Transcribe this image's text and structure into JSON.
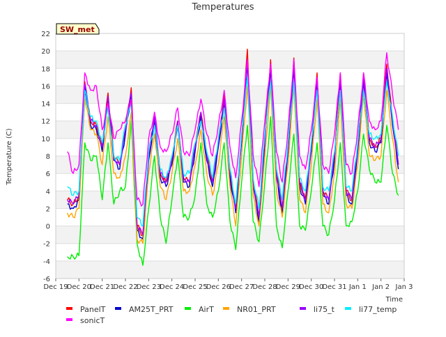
{
  "chart_data": {
    "type": "line",
    "title": "Temperatures",
    "xlabel": "Time",
    "ylabel": "Temperature (C)",
    "annotation": "SW_met",
    "ylim": [
      -6,
      22
    ],
    "yticks": [
      -6,
      -4,
      -2,
      0,
      2,
      4,
      6,
      8,
      10,
      12,
      14,
      16,
      18,
      20,
      22
    ],
    "xlim": [
      "2021-12-19",
      "2022-01-03"
    ],
    "xticks": [
      "Dec 19",
      "Dec 20",
      "Dec 21",
      "Dec 22",
      "Dec 23",
      "Dec 24",
      "Dec 25",
      "Dec 26",
      "Dec 27",
      "Dec 28",
      "Dec 29",
      "Dec 30",
      "Dec 31",
      "Jan 1",
      "Jan 2",
      "Jan 3"
    ],
    "grid": true,
    "legend_position": "bottom",
    "x": [
      "2021-12-19T12:00",
      "2021-12-19T18:00",
      "2021-12-20T00:00",
      "2021-12-20T06:00",
      "2021-12-20T12:00",
      "2021-12-20T18:00",
      "2021-12-21T00:00",
      "2021-12-21T06:00",
      "2021-12-21T12:00",
      "2021-12-21T18:00",
      "2021-12-22T00:00",
      "2021-12-22T06:00",
      "2021-12-22T12:00",
      "2021-12-22T18:00",
      "2021-12-23T00:00",
      "2021-12-23T06:00",
      "2021-12-23T12:00",
      "2021-12-23T18:00",
      "2021-12-24T00:00",
      "2021-12-24T06:00",
      "2021-12-24T12:00",
      "2021-12-24T18:00",
      "2021-12-25T00:00",
      "2021-12-25T06:00",
      "2021-12-25T12:00",
      "2021-12-25T18:00",
      "2021-12-26T00:00",
      "2021-12-26T06:00",
      "2021-12-26T12:00",
      "2021-12-26T18:00",
      "2021-12-27T00:00",
      "2021-12-27T06:00",
      "2021-12-27T12:00",
      "2021-12-27T18:00",
      "2021-12-28T00:00",
      "2021-12-28T06:00",
      "2021-12-28T12:00",
      "2021-12-28T18:00",
      "2021-12-29T00:00",
      "2021-12-29T06:00",
      "2021-12-29T12:00",
      "2021-12-29T18:00",
      "2021-12-30T00:00",
      "2021-12-30T06:00",
      "2021-12-30T12:00",
      "2021-12-30T18:00",
      "2021-12-31T00:00",
      "2021-12-31T06:00",
      "2021-12-31T12:00",
      "2021-12-31T18:00",
      "2022-01-01T00:00",
      "2022-01-01T06:00",
      "2022-01-01T12:00",
      "2022-01-01T18:00",
      "2022-01-02T00:00",
      "2022-01-02T06:00",
      "2022-01-02T12:00",
      "2022-01-02T18:00"
    ],
    "series": [
      {
        "name": "PanelT",
        "color": "#ff0000",
        "values": [
          3.0,
          2.5,
          3.5,
          16.5,
          12.0,
          11.5,
          9.0,
          15.2,
          8.0,
          7.0,
          11.0,
          15.8,
          0.0,
          -1.0,
          8.0,
          12.5,
          6.0,
          5.0,
          7.5,
          12.0,
          5.5,
          5.0,
          9.0,
          13.0,
          8.0,
          5.0,
          9.5,
          15.0,
          6.0,
          2.0,
          10.0,
          20.2,
          5.0,
          1.0,
          10.0,
          19.0,
          6.0,
          2.0,
          9.0,
          19.2,
          5.0,
          3.0,
          9.0,
          17.5,
          4.0,
          3.0,
          8.0,
          17.5,
          4.0,
          3.0,
          9.0,
          17.5,
          10.0,
          9.0,
          10.0,
          18.5,
          12.0,
          7.0
        ]
      },
      {
        "name": "AM25T_PRT",
        "color": "#0000cc",
        "values": [
          2.5,
          2.0,
          3.0,
          16.0,
          11.5,
          11.0,
          8.5,
          14.5,
          7.5,
          6.5,
          10.5,
          15.0,
          -0.5,
          -1.5,
          7.5,
          12.0,
          5.5,
          4.5,
          7.0,
          11.5,
          5.0,
          4.5,
          8.5,
          12.5,
          7.5,
          4.5,
          9.0,
          14.0,
          5.5,
          1.5,
          9.5,
          18.5,
          4.5,
          0.5,
          9.5,
          18.0,
          5.5,
          1.5,
          8.5,
          18.0,
          4.5,
          2.5,
          8.5,
          16.5,
          3.5,
          2.5,
          7.5,
          16.5,
          3.5,
          2.5,
          8.5,
          16.5,
          9.5,
          8.5,
          9.5,
          17.5,
          11.5,
          6.5
        ]
      },
      {
        "name": "AirT",
        "color": "#00ee00",
        "values": [
          -3.5,
          -3.5,
          -3.4,
          9.5,
          7.5,
          8.0,
          3.0,
          9.5,
          2.5,
          4.0,
          4.5,
          12.0,
          -2.0,
          -4.5,
          2.0,
          8.0,
          1.0,
          -2.0,
          3.0,
          8.0,
          1.0,
          1.0,
          3.5,
          9.5,
          2.5,
          1.0,
          4.0,
          9.5,
          0.5,
          -2.7,
          5.0,
          11.5,
          0.5,
          -1.8,
          5.0,
          12.5,
          0.0,
          -2.5,
          4.0,
          10.5,
          0.0,
          -0.5,
          4.0,
          9.5,
          0.0,
          -1.0,
          3.0,
          9.5,
          0.0,
          0.5,
          4.0,
          10.5,
          6.5,
          5.0,
          5.0,
          11.5,
          6.0,
          3.5
        ]
      },
      {
        "name": "NR01_PRT",
        "color": "#ffa500",
        "values": [
          1.5,
          1.0,
          2.0,
          14.5,
          11.0,
          10.5,
          7.0,
          12.5,
          6.0,
          5.5,
          8.0,
          13.0,
          -1.5,
          -2.0,
          6.0,
          10.5,
          4.5,
          3.0,
          6.0,
          10.0,
          4.0,
          4.0,
          7.0,
          11.0,
          6.0,
          3.5,
          7.0,
          12.5,
          4.5,
          0.0,
          8.0,
          16.0,
          3.5,
          0.0,
          8.0,
          16.0,
          4.0,
          1.0,
          7.0,
          16.0,
          3.0,
          1.5,
          7.0,
          14.5,
          2.5,
          1.5,
          6.0,
          14.5,
          2.5,
          2.0,
          7.0,
          15.0,
          8.0,
          7.5,
          8.0,
          15.5,
          10.0,
          5.0
        ]
      },
      {
        "name": "li75_t",
        "color": "#9900ff",
        "values": [
          3.0,
          2.5,
          3.5,
          16.2,
          12.0,
          11.5,
          9.0,
          14.8,
          7.8,
          7.0,
          11.0,
          15.2,
          0.0,
          -1.0,
          8.0,
          12.5,
          6.0,
          5.0,
          7.5,
          12.0,
          5.5,
          5.0,
          9.0,
          13.0,
          8.0,
          5.0,
          9.5,
          14.5,
          6.0,
          2.0,
          10.0,
          19.0,
          5.0,
          1.0,
          10.0,
          18.5,
          6.0,
          2.0,
          9.0,
          18.5,
          5.0,
          3.0,
          9.0,
          17.0,
          4.0,
          3.0,
          8.0,
          17.0,
          4.0,
          3.0,
          9.0,
          17.0,
          10.0,
          9.0,
          10.0,
          18.0,
          12.0,
          7.0
        ]
      },
      {
        "name": "li77_temp",
        "color": "#00eeff",
        "values": [
          4.5,
          3.5,
          4.0,
          15.5,
          12.5,
          12.0,
          9.5,
          13.5,
          8.0,
          7.5,
          11.5,
          14.0,
          1.0,
          0.0,
          8.5,
          11.5,
          6.5,
          5.5,
          8.0,
          11.5,
          6.0,
          6.0,
          9.5,
          12.0,
          8.5,
          5.5,
          10.0,
          13.5,
          6.5,
          2.5,
          10.5,
          17.0,
          5.5,
          2.0,
          10.5,
          16.5,
          6.5,
          3.0,
          9.5,
          16.5,
          5.5,
          4.0,
          9.5,
          15.5,
          4.5,
          4.0,
          8.5,
          15.5,
          4.5,
          4.0,
          9.5,
          15.5,
          10.5,
          10.0,
          10.5,
          16.5,
          12.5,
          8.0
        ]
      },
      {
        "name": "sonicT",
        "color": "#ff00ff",
        "values": [
          8.5,
          6.0,
          7.0,
          17.5,
          15.5,
          16.0,
          11.0,
          14.0,
          10.0,
          11.0,
          12.0,
          14.5,
          3.0,
          2.5,
          10.0,
          13.0,
          9.0,
          8.5,
          10.5,
          13.5,
          8.5,
          8.0,
          11.0,
          14.5,
          10.5,
          8.0,
          11.5,
          15.5,
          9.0,
          5.5,
          12.0,
          19.0,
          8.0,
          4.5,
          12.0,
          18.5,
          8.5,
          5.0,
          11.0,
          19.0,
          8.0,
          6.5,
          11.0,
          17.0,
          7.0,
          6.0,
          10.5,
          17.5,
          7.0,
          6.0,
          11.0,
          17.5,
          12.0,
          11.0,
          12.0,
          19.8,
          15.0,
          11.0
        ]
      }
    ]
  }
}
